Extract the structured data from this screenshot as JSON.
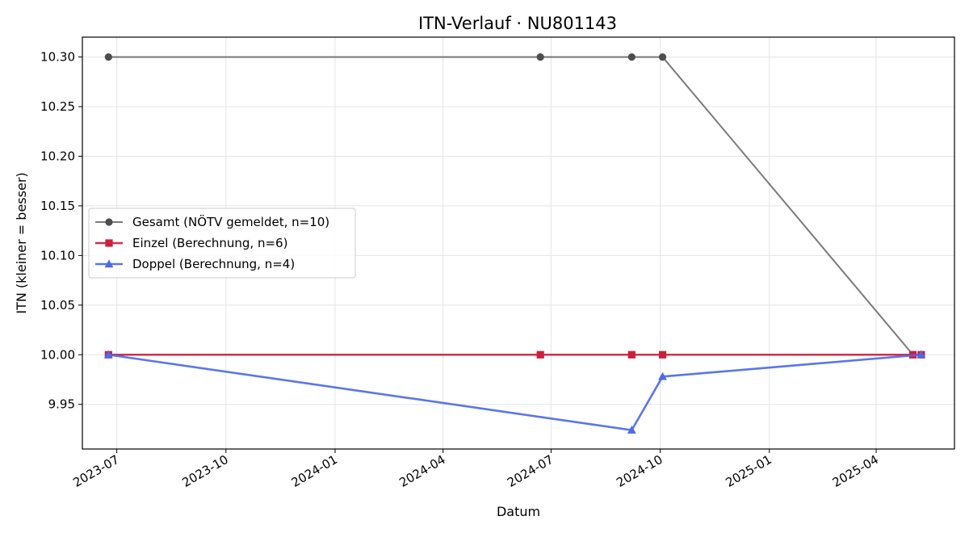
{
  "chart_data": {
    "type": "line",
    "title": "ITN-Verlauf · NU801143",
    "xlabel": "Datum",
    "ylabel": "ITN  (kleiner = besser)",
    "x_axis_type": "date",
    "xlim": [
      "2023-06-02",
      "2025-06-06"
    ],
    "ylim": [
      9.905,
      10.32
    ],
    "x_ticks": [
      "2023-07-01",
      "2023-10-01",
      "2024-01-01",
      "2024-04-01",
      "2024-07-01",
      "2024-10-01",
      "2025-01-01",
      "2025-04-01"
    ],
    "x_tick_labels": [
      "2023-07",
      "2023-10",
      "2024-01",
      "2024-04",
      "2024-07",
      "2024-10",
      "2025-01",
      "2025-04"
    ],
    "y_ticks": [
      9.95,
      10.0,
      10.05,
      10.1,
      10.15,
      10.2,
      10.25,
      10.3
    ],
    "y_tick_labels": [
      "9.95",
      "10.00",
      "10.05",
      "10.10",
      "10.15",
      "10.20",
      "10.25",
      "10.30"
    ],
    "grid": true,
    "legend_position": "center-left",
    "series": [
      {
        "name": "Gesamt (NÖTV gemeldet, n=10)",
        "color": "#4d4d4d",
        "marker": "circle",
        "points": [
          {
            "x": "2023-06-24",
            "y": 10.3
          },
          {
            "x": "2024-06-22",
            "y": 10.3
          },
          {
            "x": "2024-09-07",
            "y": 10.3
          },
          {
            "x": "2024-10-03",
            "y": 10.3
          },
          {
            "x": "2025-05-02",
            "y": 10.0
          },
          {
            "x": "2025-05-09",
            "y": 10.0
          }
        ]
      },
      {
        "name": "Einzel (Berechnung, n=6)",
        "color": "#cc1f3c",
        "marker": "square",
        "points": [
          {
            "x": "2023-06-24",
            "y": 10.0
          },
          {
            "x": "2024-06-22",
            "y": 10.0
          },
          {
            "x": "2024-09-07",
            "y": 10.0
          },
          {
            "x": "2024-10-03",
            "y": 10.0
          },
          {
            "x": "2025-05-02",
            "y": 10.0
          },
          {
            "x": "2025-05-09",
            "y": 10.0
          }
        ]
      },
      {
        "name": "Doppel (Berechnung, n=4)",
        "color": "#4d6ae8",
        "marker": "triangle",
        "points": [
          {
            "x": "2023-06-24",
            "y": 10.0
          },
          {
            "x": "2024-09-07",
            "y": 9.924
          },
          {
            "x": "2024-10-03",
            "y": 9.978
          },
          {
            "x": "2025-05-09",
            "y": 10.0
          }
        ]
      }
    ]
  }
}
